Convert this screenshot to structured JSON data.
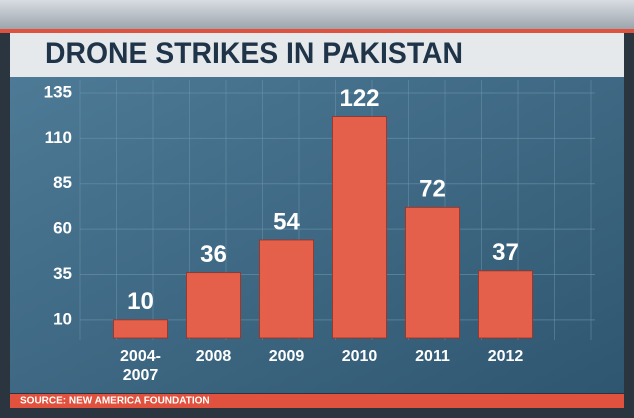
{
  "chart_data": {
    "type": "bar",
    "title": "DRONE STRIKES IN PAKISTAN",
    "categories": [
      "2004-2007",
      "2008",
      "2009",
      "2010",
      "2011",
      "2012"
    ],
    "values": [
      10,
      36,
      54,
      122,
      72,
      37
    ],
    "color": "#e5604b",
    "ylim": [
      0,
      135
    ],
    "yticks": [
      10,
      35,
      60,
      85,
      110,
      135
    ],
    "grid": true,
    "source": "SOURCE: NEW AMERICA FOUNDATION"
  }
}
